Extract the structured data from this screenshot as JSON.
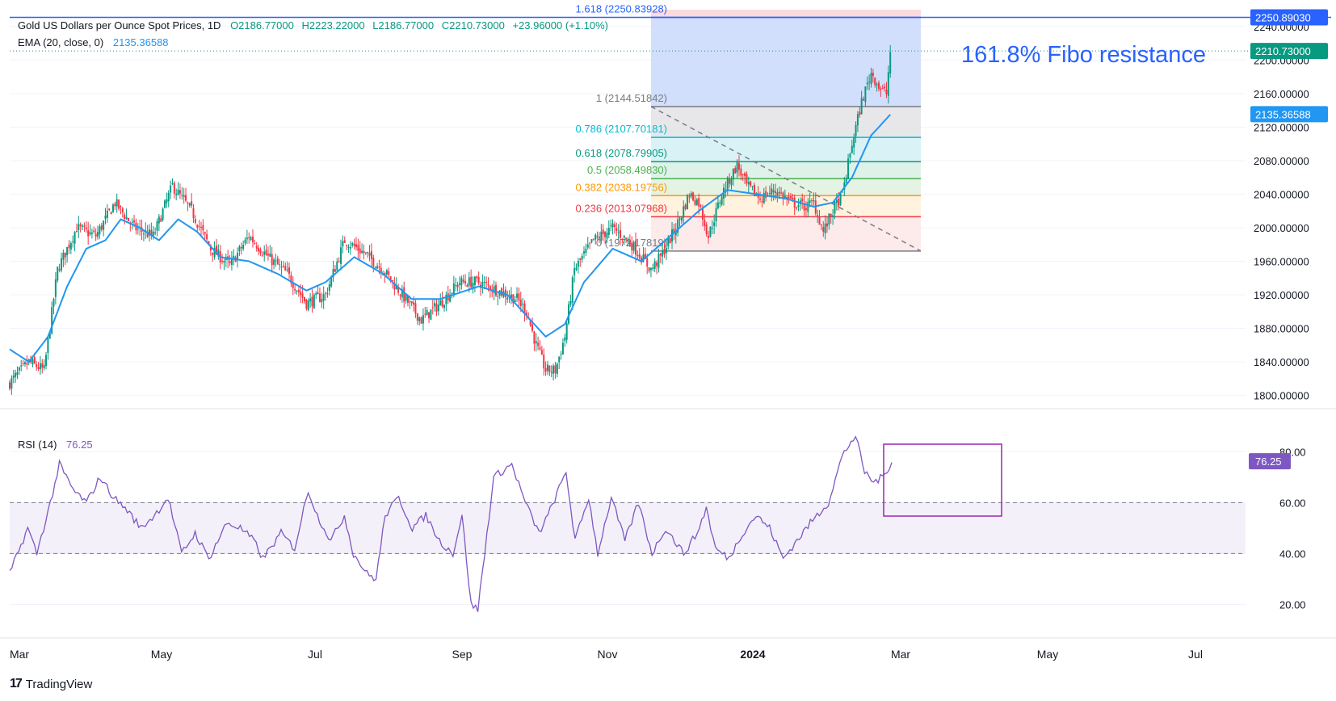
{
  "header": {
    "symbol": "Gold US Dollars per Ounce Spot Prices, 1D",
    "open": "O2186.77000",
    "high": "H2223.22000",
    "low": "L2186.77000",
    "close": "C2210.73000",
    "change": "+23.96000 (+1.10%)",
    "ema_label": "EMA (20, close, 0)",
    "ema_value": "2135.36588",
    "rsi_label": "RSI (14)",
    "rsi_value": "76.25"
  },
  "annotation": "161.8% Fibo resistance",
  "branding": "TradingView",
  "colors": {
    "up": "#089981",
    "down": "#f23645",
    "ema": "#2196f3",
    "rsi": "#7e57c2",
    "highlight": "#9c27b0",
    "line_blue": "#2962ff"
  },
  "chart_data": [
    {
      "type": "candlestick",
      "title": "Gold US Dollars per Ounce Spot Prices, 1D",
      "y_ticks": [
        "2240.00000",
        "2200.00000",
        "2160.00000",
        "2120.00000",
        "2080.00000",
        "2040.00000",
        "2000.00000",
        "1960.00000",
        "1920.00000",
        "1880.00000",
        "1840.00000",
        "1800.00000"
      ],
      "ylim": [
        1790,
        2260
      ],
      "x_ticks": [
        "Mar",
        "May",
        "Jul",
        "Sep",
        "Nov",
        "2024",
        "Mar",
        "May",
        "Jul"
      ],
      "price_labels": {
        "resistance": "2250.89030",
        "close": "2210.73000",
        "ema": "2135.36588"
      },
      "price_anchors": [
        [
          0,
          1815
        ],
        [
          10,
          1840
        ],
        [
          18,
          1830
        ],
        [
          25,
          1950
        ],
        [
          35,
          2000
        ],
        [
          45,
          1990
        ],
        [
          55,
          2030
        ],
        [
          65,
          2000
        ],
        [
          75,
          1990
        ],
        [
          85,
          2050
        ],
        [
          95,
          2020
        ],
        [
          105,
          1975
        ],
        [
          115,
          1955
        ],
        [
          125,
          1990
        ],
        [
          135,
          1965
        ],
        [
          145,
          1945
        ],
        [
          155,
          1910
        ],
        [
          165,
          1920
        ],
        [
          175,
          1985
        ],
        [
          185,
          1970
        ],
        [
          195,
          1950
        ],
        [
          205,
          1920
        ],
        [
          215,
          1890
        ],
        [
          225,
          1910
        ],
        [
          235,
          1935
        ],
        [
          245,
          1935
        ],
        [
          255,
          1925
        ],
        [
          265,
          1915
        ],
        [
          270,
          1900
        ],
        [
          275,
          1860
        ],
        [
          280,
          1830
        ],
        [
          285,
          1830
        ],
        [
          290,
          1870
        ],
        [
          295,
          1950
        ],
        [
          305,
          1985
        ],
        [
          315,
          2000
        ],
        [
          325,
          1980
        ],
        [
          335,
          1950
        ],
        [
          340,
          1965
        ],
        [
          348,
          2000
        ],
        [
          355,
          2040
        ],
        [
          360,
          2030
        ],
        [
          365,
          1990
        ],
        [
          372,
          2040
        ],
        [
          380,
          2075
        ],
        [
          385,
          2050
        ],
        [
          392,
          2035
        ],
        [
          400,
          2045
        ],
        [
          408,
          2030
        ],
        [
          416,
          2025
        ],
        [
          420,
          2030
        ],
        [
          425,
          1995
        ],
        [
          430,
          2020
        ],
        [
          435,
          2040
        ],
        [
          440,
          2100
        ],
        [
          445,
          2150
        ],
        [
          450,
          2185
        ],
        [
          455,
          2165
        ],
        [
          458,
          2160
        ],
        [
          460,
          2210
        ]
      ],
      "ema": {
        "label": "EMA (20, close, 0)",
        "anchors": [
          [
            0,
            1855
          ],
          [
            10,
            1840
          ],
          [
            20,
            1870
          ],
          [
            30,
            1930
          ],
          [
            40,
            1975
          ],
          [
            50,
            1985
          ],
          [
            58,
            2010
          ],
          [
            68,
            2000
          ],
          [
            78,
            1985
          ],
          [
            88,
            2010
          ],
          [
            98,
            1995
          ],
          [
            110,
            1965
          ],
          [
            125,
            1960
          ],
          [
            140,
            1945
          ],
          [
            155,
            1925
          ],
          [
            165,
            1935
          ],
          [
            180,
            1965
          ],
          [
            195,
            1945
          ],
          [
            210,
            1915
          ],
          [
            225,
            1915
          ],
          [
            245,
            1930
          ],
          [
            260,
            1920
          ],
          [
            272,
            1890
          ],
          [
            280,
            1870
          ],
          [
            290,
            1885
          ],
          [
            300,
            1935
          ],
          [
            315,
            1975
          ],
          [
            330,
            1960
          ],
          [
            345,
            1990
          ],
          [
            360,
            2020
          ],
          [
            375,
            2045
          ],
          [
            390,
            2040
          ],
          [
            405,
            2035
          ],
          [
            420,
            2025
          ],
          [
            430,
            2030
          ],
          [
            440,
            2060
          ],
          [
            450,
            2110
          ],
          [
            460,
            2135
          ]
        ]
      },
      "fibonacci": {
        "levels": [
          {
            "label": "1.618 (2250.83928)",
            "value": 2250.83928,
            "color": "#2962ff"
          },
          {
            "label": "1 (2144.51842)",
            "value": 2144.51842,
            "color": "#787b86"
          },
          {
            "label": "0.786 (2107.70181)",
            "value": 2107.70181,
            "color": "#00bcd4"
          },
          {
            "label": "0.618 (2078.79905)",
            "value": 2078.79905,
            "color": "#089981"
          },
          {
            "label": "0.5 (2058.49830)",
            "value": 2058.4983,
            "color": "#4caf50"
          },
          {
            "label": "0.382 (2038.19756)",
            "value": 2038.19756,
            "color": "#ff9800"
          },
          {
            "label": "0.236 (2013.07968)",
            "value": 2013.07968,
            "color": "#f23645"
          },
          {
            "label": "0 (1972.17819)",
            "value": 1972.17819,
            "color": "#787b86"
          }
        ]
      }
    },
    {
      "type": "line",
      "title": "RSI (14)",
      "y_ticks": [
        "80.00",
        "60.00",
        "40.00",
        "20.00"
      ],
      "ylim": [
        10,
        95
      ],
      "band": [
        40,
        60
      ],
      "value_label": "76.25",
      "anchors": [
        [
          0,
          32
        ],
        [
          8,
          50
        ],
        [
          12,
          40
        ],
        [
          18,
          60
        ],
        [
          22,
          75
        ],
        [
          28,
          65
        ],
        [
          34,
          60
        ],
        [
          40,
          70
        ],
        [
          46,
          62
        ],
        [
          52,
          57
        ],
        [
          58,
          50
        ],
        [
          64,
          55
        ],
        [
          70,
          62
        ],
        [
          76,
          40
        ],
        [
          82,
          48
        ],
        [
          88,
          38
        ],
        [
          96,
          52
        ],
        [
          102,
          50
        ],
        [
          108,
          45
        ],
        [
          112,
          38
        ],
        [
          120,
          48
        ],
        [
          126,
          42
        ],
        [
          132,
          65
        ],
        [
          136,
          55
        ],
        [
          142,
          45
        ],
        [
          148,
          55
        ],
        [
          152,
          40
        ],
        [
          158,
          32
        ],
        [
          162,
          30
        ],
        [
          166,
          55
        ],
        [
          172,
          62
        ],
        [
          178,
          50
        ],
        [
          184,
          55
        ],
        [
          190,
          45
        ],
        [
          196,
          40
        ],
        [
          200,
          55
        ],
        [
          204,
          20
        ],
        [
          207,
          18
        ],
        [
          210,
          40
        ],
        [
          214,
          70
        ],
        [
          222,
          75
        ],
        [
          228,
          60
        ],
        [
          234,
          48
        ],
        [
          238,
          55
        ],
        [
          246,
          72
        ],
        [
          250,
          45
        ],
        [
          256,
          62
        ],
        [
          260,
          40
        ],
        [
          266,
          62
        ],
        [
          272,
          45
        ],
        [
          278,
          60
        ],
        [
          284,
          40
        ],
        [
          290,
          50
        ],
        [
          294,
          45
        ],
        [
          298,
          40
        ],
        [
          304,
          48
        ],
        [
          308,
          58
        ],
        [
          312,
          42
        ],
        [
          318,
          38
        ],
        [
          324,
          48
        ],
        [
          330,
          55
        ],
        [
          336,
          50
        ],
        [
          342,
          38
        ],
        [
          348,
          45
        ],
        [
          354,
          52
        ],
        [
          358,
          56
        ],
        [
          362,
          60
        ],
        [
          368,
          78
        ],
        [
          372,
          84
        ],
        [
          374,
          86
        ],
        [
          378,
          72
        ],
        [
          382,
          68
        ],
        [
          386,
          70
        ],
        [
          390,
          76
        ]
      ]
    }
  ]
}
